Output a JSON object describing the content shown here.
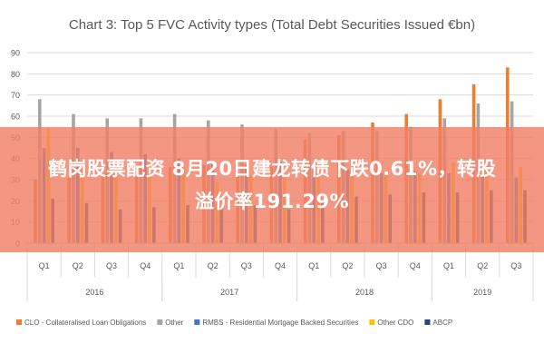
{
  "chart_data": {
    "type": "bar",
    "title": "Chart 3: Top 5 FVC Activity types (Total Debt Securities Issued €bn)",
    "xlabel": "",
    "ylabel": "",
    "ylim": [
      0,
      90
    ],
    "yticks": [
      "0",
      "10",
      "20",
      "30",
      "40",
      "50",
      "60",
      "70",
      "80",
      "90"
    ],
    "grid": true,
    "legend_position": "bottom",
    "categories": [
      "Q1",
      "Q2",
      "Q3",
      "Q4",
      "Q1",
      "Q2",
      "Q3",
      "Q4",
      "Q1",
      "Q2",
      "Q3",
      "Q4",
      "Q1",
      "Q2",
      "Q3"
    ],
    "years": [
      {
        "label": "2016",
        "span": 4
      },
      {
        "label": "2017",
        "span": 4
      },
      {
        "label": "2018",
        "span": 4
      },
      {
        "label": "2019",
        "span": 3
      }
    ],
    "series": [
      {
        "name": "CLO - Collateralised Loan Obligations",
        "color": "#ED7D31",
        "values": [
          30,
          31,
          32,
          33,
          36,
          37,
          33,
          36,
          49,
          51,
          57,
          61,
          68,
          75,
          83
        ]
      },
      {
        "name": "Other",
        "color": "#A5A5A5",
        "values": [
          68,
          61,
          59,
          59,
          61,
          58,
          56,
          54,
          52,
          53,
          53,
          55,
          59,
          66,
          67
        ]
      },
      {
        "name": "RMBS - Residential Mortgage Backed Securities",
        "color": "#4472C4",
        "values": [
          45,
          45,
          43,
          42,
          40,
          38,
          37,
          38,
          36,
          35,
          33,
          34,
          33,
          32,
          31
        ]
      },
      {
        "name": "Other CDO",
        "color": "#FFC000",
        "values": [
          54,
          35,
          36,
          38,
          36,
          29,
          32,
          31,
          32,
          32,
          33,
          33,
          38,
          37,
          36
        ]
      },
      {
        "name": "ABCP",
        "color": "#264478",
        "values": [
          21,
          19,
          16,
          17,
          18,
          17,
          18,
          16,
          20,
          22,
          23,
          24,
          24,
          25,
          25
        ]
      }
    ]
  },
  "banner": {
    "line1": "鹤岗股票配资 8月20日建龙转债下跌0.61%，转股",
    "line2": "溢价率191.29%"
  }
}
